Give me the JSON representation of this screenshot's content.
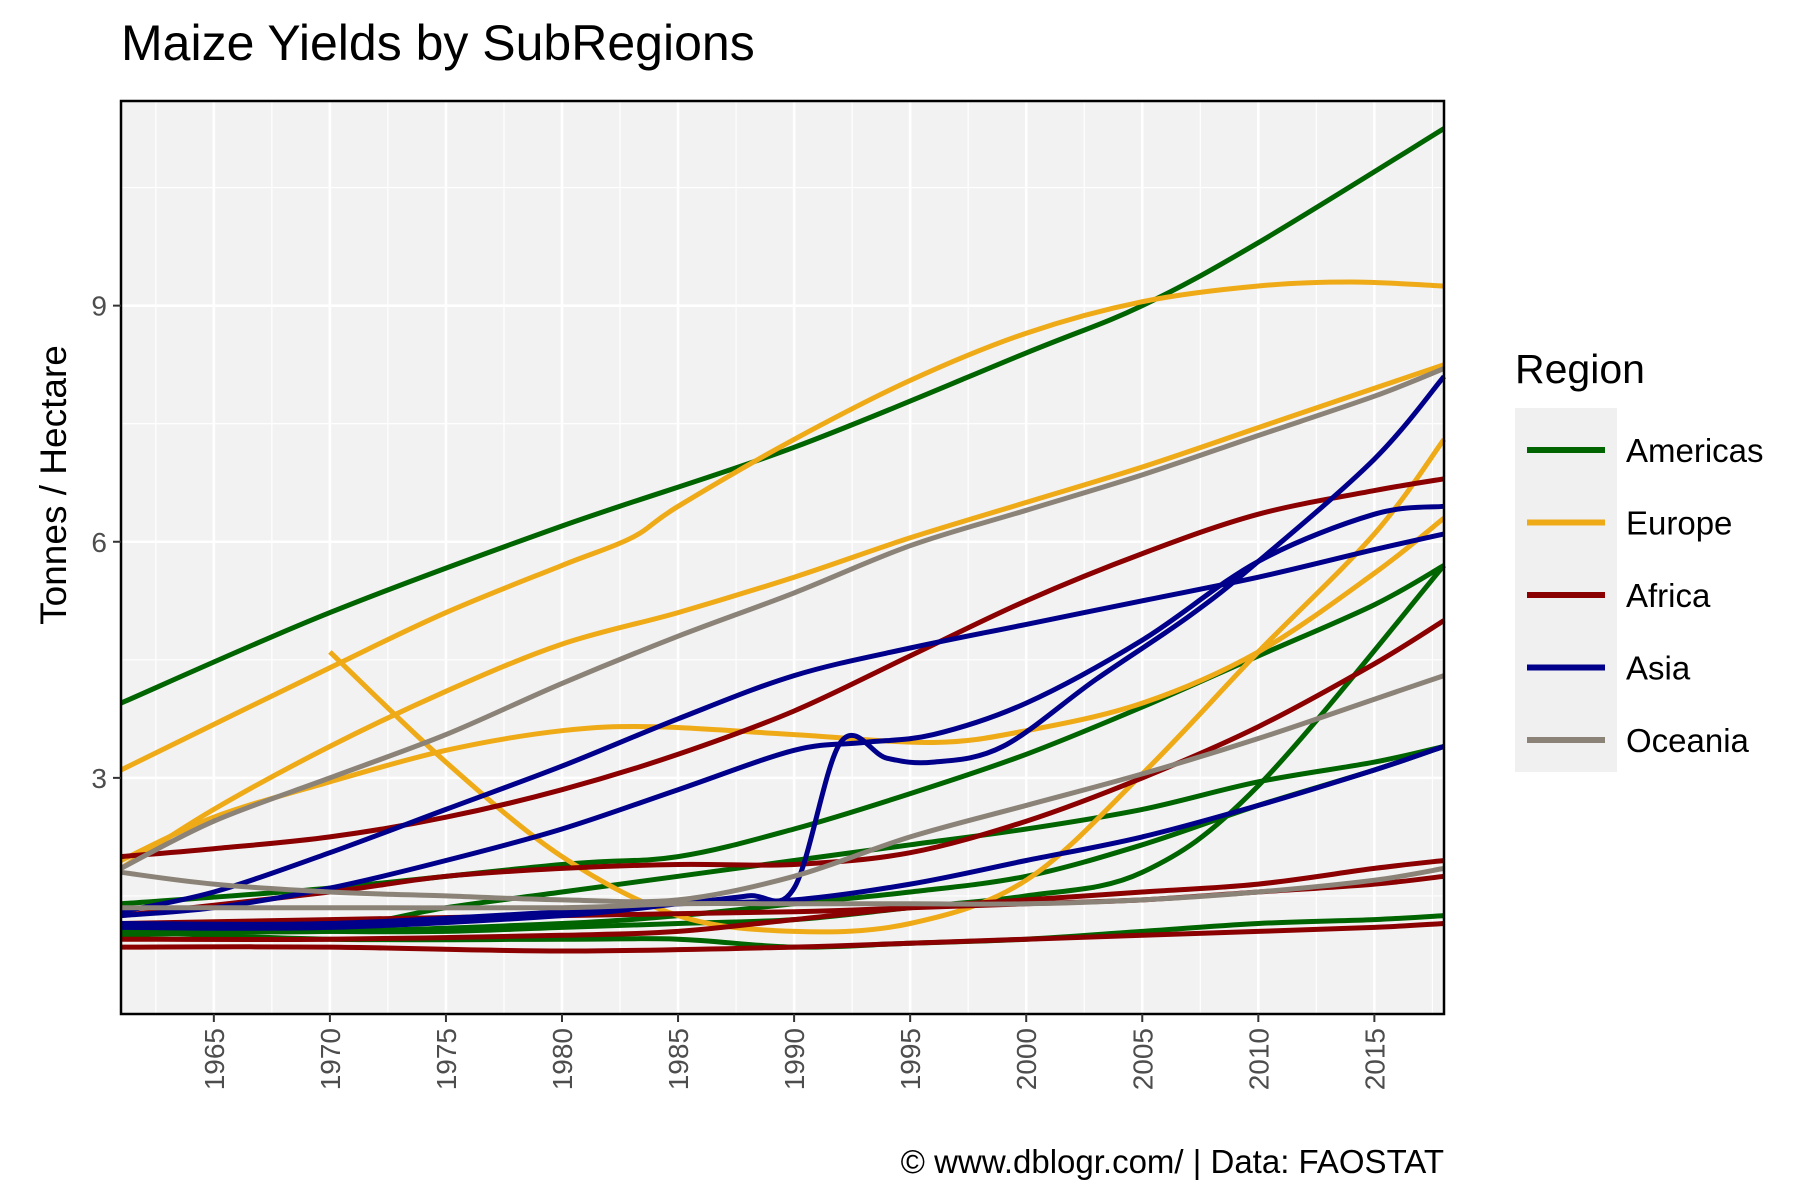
{
  "colors": {
    "Americas": "#006400",
    "Europe": "#EFAA17",
    "Africa": "#8B0000",
    "Asia": "#00008B",
    "Oceania": "#8B8378"
  },
  "chart_data": {
    "type": "line",
    "title": "Maize Yields by SubRegions",
    "xlabel": "",
    "ylabel": "Tonnes / Hectare",
    "caption": "© www.dblogr.com/  |  Data: FAOSTAT",
    "xlim": [
      1961,
      2018
    ],
    "ylim": [
      0,
      11.6
    ],
    "x_ticks": [
      1965,
      1970,
      1975,
      1980,
      1985,
      1990,
      1995,
      2000,
      2005,
      2010,
      2015
    ],
    "y_ticks": [
      3,
      6,
      9
    ],
    "grid": true,
    "legend": {
      "title": "Region",
      "position": "right",
      "entries": [
        "Americas",
        "Europe",
        "Africa",
        "Asia",
        "Oceania"
      ]
    },
    "series": [
      {
        "group": "Americas",
        "points": [
          [
            1961,
            3.95
          ],
          [
            1970,
            5.1
          ],
          [
            1980,
            6.2
          ],
          [
            1990,
            7.2
          ],
          [
            2000,
            8.4
          ],
          [
            2005,
            9.0
          ],
          [
            2010,
            9.8
          ],
          [
            2018,
            11.25
          ]
        ]
      },
      {
        "group": "Americas",
        "points": [
          [
            1961,
            1.05
          ],
          [
            1970,
            1.05
          ],
          [
            1980,
            1.15
          ],
          [
            1985,
            1.25
          ],
          [
            1990,
            1.4
          ],
          [
            1995,
            1.55
          ],
          [
            2000,
            1.75
          ],
          [
            2005,
            2.15
          ],
          [
            2010,
            2.65
          ],
          [
            2015,
            3.1
          ],
          [
            2018,
            3.4
          ]
        ]
      },
      {
        "group": "Americas",
        "points": [
          [
            1961,
            1.1
          ],
          [
            1970,
            1.05
          ],
          [
            1975,
            1.05
          ],
          [
            1980,
            1.1
          ],
          [
            1985,
            1.15
          ],
          [
            1990,
            1.2
          ],
          [
            1995,
            1.35
          ],
          [
            2000,
            1.5
          ],
          [
            2005,
            1.8
          ],
          [
            2010,
            2.9
          ],
          [
            2018,
            5.7
          ]
        ]
      },
      {
        "group": "Americas",
        "points": [
          [
            1961,
            1.4
          ],
          [
            1970,
            1.6
          ],
          [
            1980,
            1.9
          ],
          [
            1985,
            2.0
          ],
          [
            1990,
            2.35
          ],
          [
            1995,
            2.8
          ],
          [
            2000,
            3.3
          ],
          [
            2005,
            3.9
          ],
          [
            2010,
            4.55
          ],
          [
            2015,
            5.2
          ],
          [
            2018,
            5.7
          ]
        ]
      },
      {
        "group": "Americas",
        "points": [
          [
            1961,
            1.0
          ],
          [
            1970,
            1.1
          ],
          [
            1975,
            1.35
          ],
          [
            1980,
            1.55
          ],
          [
            1985,
            1.75
          ],
          [
            1990,
            1.95
          ],
          [
            1995,
            2.15
          ],
          [
            2000,
            2.35
          ],
          [
            2005,
            2.6
          ],
          [
            2010,
            2.95
          ],
          [
            2015,
            3.2
          ],
          [
            2018,
            3.4
          ]
        ]
      },
      {
        "group": "Americas",
        "points": [
          [
            1961,
            1.05
          ],
          [
            1970,
            0.95
          ],
          [
            1980,
            0.95
          ],
          [
            1985,
            0.95
          ],
          [
            1990,
            0.85
          ],
          [
            1995,
            0.9
          ],
          [
            2000,
            0.95
          ],
          [
            2005,
            1.05
          ],
          [
            2010,
            1.15
          ],
          [
            2015,
            1.2
          ],
          [
            2018,
            1.25
          ]
        ]
      },
      {
        "group": "Europe",
        "points": [
          [
            1961,
            3.1
          ],
          [
            1970,
            4.4
          ],
          [
            1975,
            5.1
          ],
          [
            1980,
            5.7
          ],
          [
            1983,
            6.05
          ],
          [
            1985,
            6.45
          ],
          [
            1990,
            7.3
          ],
          [
            1995,
            8.05
          ],
          [
            2000,
            8.65
          ],
          [
            2005,
            9.05
          ],
          [
            2010,
            9.25
          ],
          [
            2014,
            9.3
          ],
          [
            2018,
            9.25
          ]
        ]
      },
      {
        "group": "Europe",
        "points": [
          [
            1961,
            1.85
          ],
          [
            1965,
            2.6
          ],
          [
            1970,
            3.4
          ],
          [
            1975,
            4.1
          ],
          [
            1980,
            4.7
          ],
          [
            1985,
            5.1
          ],
          [
            1990,
            5.55
          ],
          [
            1995,
            6.05
          ],
          [
            2000,
            6.5
          ],
          [
            2005,
            6.95
          ],
          [
            2010,
            7.45
          ],
          [
            2015,
            7.95
          ],
          [
            2018,
            8.25
          ]
        ]
      },
      {
        "group": "Europe",
        "points": [
          [
            1961,
            1.95
          ],
          [
            1965,
            2.5
          ],
          [
            1970,
            2.95
          ],
          [
            1975,
            3.35
          ],
          [
            1980,
            3.6
          ],
          [
            1984,
            3.65
          ],
          [
            1990,
            3.55
          ],
          [
            1996,
            3.45
          ],
          [
            2000,
            3.6
          ],
          [
            2005,
            3.95
          ],
          [
            2010,
            4.6
          ],
          [
            2015,
            5.6
          ],
          [
            2018,
            6.3
          ]
        ]
      },
      {
        "group": "Europe",
        "points": [
          [
            1970,
            4.6
          ],
          [
            1975,
            3.2
          ],
          [
            1980,
            2.0
          ],
          [
            1985,
            1.25
          ],
          [
            1990,
            1.05
          ],
          [
            1995,
            1.15
          ],
          [
            2000,
            1.7
          ],
          [
            2005,
            3.05
          ],
          [
            2010,
            4.6
          ],
          [
            2015,
            6.1
          ],
          [
            2018,
            7.3
          ]
        ]
      },
      {
        "group": "Africa",
        "points": [
          [
            1961,
            2.0
          ],
          [
            1965,
            2.1
          ],
          [
            1970,
            2.25
          ],
          [
            1975,
            2.5
          ],
          [
            1980,
            2.85
          ],
          [
            1985,
            3.3
          ],
          [
            1990,
            3.85
          ],
          [
            1995,
            4.55
          ],
          [
            2000,
            5.25
          ],
          [
            2005,
            5.85
          ],
          [
            2010,
            6.35
          ],
          [
            2015,
            6.65
          ],
          [
            2018,
            6.8
          ]
        ]
      },
      {
        "group": "Africa",
        "points": [
          [
            1961,
            1.25
          ],
          [
            1970,
            1.55
          ],
          [
            1975,
            1.75
          ],
          [
            1980,
            1.85
          ],
          [
            1985,
            1.9
          ],
          [
            1990,
            1.9
          ],
          [
            1995,
            2.05
          ],
          [
            2000,
            2.45
          ],
          [
            2005,
            3.0
          ],
          [
            2010,
            3.65
          ],
          [
            2015,
            4.45
          ],
          [
            2018,
            5.0
          ]
        ]
      },
      {
        "group": "Africa",
        "points": [
          [
            1961,
            0.95
          ],
          [
            1970,
            0.95
          ],
          [
            1980,
            1.0
          ],
          [
            1985,
            1.05
          ],
          [
            1990,
            1.2
          ],
          [
            1995,
            1.35
          ],
          [
            2000,
            1.45
          ],
          [
            2005,
            1.55
          ],
          [
            2010,
            1.65
          ],
          [
            2015,
            1.85
          ],
          [
            2018,
            1.95
          ]
        ]
      },
      {
        "group": "Africa",
        "points": [
          [
            1961,
            1.15
          ],
          [
            1970,
            1.2
          ],
          [
            1980,
            1.25
          ],
          [
            1990,
            1.3
          ],
          [
            1995,
            1.35
          ],
          [
            2000,
            1.4
          ],
          [
            2005,
            1.45
          ],
          [
            2010,
            1.55
          ],
          [
            2015,
            1.65
          ],
          [
            2018,
            1.75
          ]
        ]
      },
      {
        "group": "Africa",
        "points": [
          [
            1961,
            0.85
          ],
          [
            1970,
            0.85
          ],
          [
            1980,
            0.8
          ],
          [
            1990,
            0.85
          ],
          [
            1995,
            0.9
          ],
          [
            2000,
            0.95
          ],
          [
            2005,
            1.0
          ],
          [
            2010,
            1.05
          ],
          [
            2015,
            1.1
          ],
          [
            2018,
            1.15
          ]
        ]
      },
      {
        "group": "Asia",
        "points": [
          [
            1961,
            1.3
          ],
          [
            1965,
            1.55
          ],
          [
            1970,
            2.05
          ],
          [
            1975,
            2.6
          ],
          [
            1980,
            3.15
          ],
          [
            1985,
            3.75
          ],
          [
            1990,
            4.3
          ],
          [
            1995,
            4.65
          ],
          [
            2000,
            4.95
          ],
          [
            2005,
            5.25
          ],
          [
            2010,
            5.55
          ],
          [
            2015,
            5.9
          ],
          [
            2018,
            6.1
          ]
        ]
      },
      {
        "group": "Asia",
        "points": [
          [
            1961,
            1.25
          ],
          [
            1965,
            1.35
          ],
          [
            1970,
            1.6
          ],
          [
            1975,
            1.95
          ],
          [
            1980,
            2.35
          ],
          [
            1985,
            2.85
          ],
          [
            1990,
            3.35
          ],
          [
            1993,
            3.45
          ],
          [
            1996,
            3.55
          ],
          [
            2000,
            3.95
          ],
          [
            2005,
            4.75
          ],
          [
            2010,
            5.75
          ],
          [
            2015,
            6.35
          ],
          [
            2018,
            6.45
          ]
        ]
      },
      {
        "group": "Asia",
        "points": [
          [
            1961,
            1.15
          ],
          [
            1970,
            1.15
          ],
          [
            1980,
            1.3
          ],
          [
            1985,
            1.4
          ],
          [
            1990,
            1.45
          ],
          [
            1995,
            1.65
          ],
          [
            2000,
            1.95
          ],
          [
            2005,
            2.25
          ],
          [
            2010,
            2.65
          ],
          [
            2015,
            3.1
          ],
          [
            2018,
            3.4
          ]
        ]
      },
      {
        "group": "Asia",
        "points": [
          [
            1961,
            1.1
          ],
          [
            1970,
            1.1
          ],
          [
            1980,
            1.25
          ],
          [
            1985,
            1.4
          ],
          [
            1988,
            1.5
          ],
          [
            1990,
            1.6
          ],
          [
            1992,
            3.45
          ],
          [
            1994,
            3.25
          ],
          [
            1996,
            3.2
          ],
          [
            1999,
            3.4
          ],
          [
            2003,
            4.25
          ],
          [
            2007,
            5.05
          ],
          [
            2010,
            5.75
          ],
          [
            2015,
            7.05
          ],
          [
            2018,
            8.1
          ]
        ]
      },
      {
        "group": "Oceania",
        "points": [
          [
            1961,
            1.85
          ],
          [
            1965,
            2.45
          ],
          [
            1970,
            3.0
          ],
          [
            1975,
            3.55
          ],
          [
            1980,
            4.2
          ],
          [
            1985,
            4.8
          ],
          [
            1990,
            5.35
          ],
          [
            1995,
            5.95
          ],
          [
            2000,
            6.4
          ],
          [
            2005,
            6.85
          ],
          [
            2010,
            7.35
          ],
          [
            2015,
            7.85
          ],
          [
            2018,
            8.2
          ]
        ]
      },
      {
        "group": "Oceania",
        "points": [
          [
            1961,
            1.8
          ],
          [
            1965,
            1.65
          ],
          [
            1970,
            1.55
          ],
          [
            1975,
            1.5
          ],
          [
            1980,
            1.45
          ],
          [
            1985,
            1.45
          ],
          [
            1990,
            1.75
          ],
          [
            1995,
            2.25
          ],
          [
            2000,
            2.65
          ],
          [
            2005,
            3.05
          ],
          [
            2010,
            3.5
          ],
          [
            2015,
            4.0
          ],
          [
            2018,
            4.3
          ]
        ]
      },
      {
        "group": "Oceania",
        "points": [
          [
            1961,
            1.35
          ],
          [
            1970,
            1.35
          ],
          [
            1980,
            1.35
          ],
          [
            1985,
            1.4
          ],
          [
            1990,
            1.4
          ],
          [
            1995,
            1.4
          ],
          [
            2000,
            1.4
          ],
          [
            2005,
            1.45
          ],
          [
            2010,
            1.55
          ],
          [
            2015,
            1.7
          ],
          [
            2018,
            1.85
          ]
        ]
      }
    ]
  }
}
